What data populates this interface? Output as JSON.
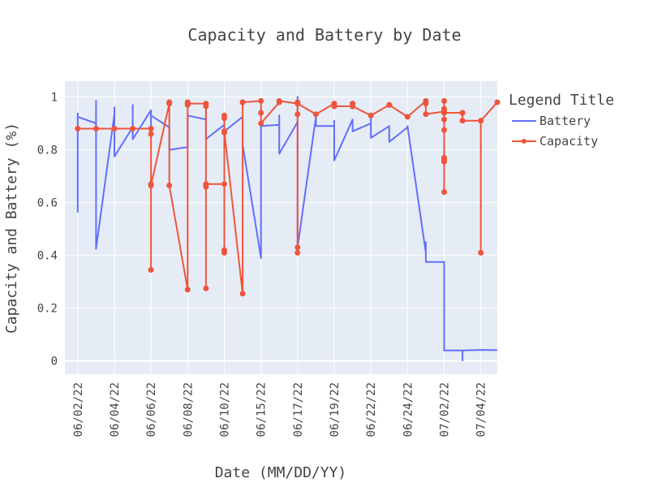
{
  "chart_data": {
    "type": "line",
    "title": "Capacity and Battery by Date",
    "xlabel": "Date (MM/DD/YY)",
    "ylabel": "Capacity and Battery (%)",
    "ylim": [
      -0.05,
      1.06
    ],
    "yticks": [
      0,
      0.2,
      0.4,
      0.6,
      0.8,
      1
    ],
    "ytick_labels": [
      "0",
      "0.2",
      "0.4",
      "0.6",
      "0.8",
      "1"
    ],
    "x_categories": [
      "06/02/22",
      "06/04/22",
      "06/06/22",
      "06/08/22",
      "06/10/22",
      "06/15/22",
      "06/17/22",
      "06/19/22",
      "06/22/22",
      "06/24/22",
      "07/02/22",
      "07/04/22"
    ],
    "xlim": [
      -0.35,
      11.45
    ],
    "legend": {
      "title": "Legend Title",
      "position": "right"
    },
    "series": [
      {
        "name": "Battery",
        "color": "#636efa",
        "mode": "lines",
        "x": [
          0,
          0,
          0,
          0.5,
          0.5,
          0.5,
          1,
          1,
          1,
          1.5,
          1.5,
          1.5,
          2,
          2,
          2,
          2.5,
          2.5,
          3,
          3,
          3.5,
          3.5,
          3.5,
          4,
          4,
          4,
          4.5,
          4.5,
          5,
          5,
          5.5,
          5.5,
          5.5,
          6,
          6,
          6,
          6.5,
          6.5,
          7,
          7,
          7,
          7.5,
          7.5,
          8,
          8,
          8,
          8.5,
          8.5,
          9,
          9,
          9.5,
          9.5,
          9.5,
          10,
          10,
          10,
          10.5,
          10.5,
          10.5,
          11,
          11.45
        ],
        "y": [
          0.94,
          0.565,
          0.925,
          0.9,
          0.985,
          0.425,
          0.935,
          0.96,
          0.775,
          0.885,
          0.97,
          0.84,
          0.95,
          0.85,
          0.93,
          0.885,
          0.8,
          0.81,
          0.93,
          0.915,
          0.96,
          0.84,
          0.895,
          0.93,
          0.87,
          0.925,
          0.82,
          0.39,
          0.89,
          0.895,
          0.93,
          0.785,
          0.905,
          1.0,
          0.43,
          0.925,
          0.89,
          0.89,
          0.91,
          0.76,
          0.915,
          0.87,
          0.9,
          0.92,
          0.845,
          0.89,
          0.83,
          0.885,
          0.89,
          0.41,
          0.45,
          0.375,
          0.375,
          0.04,
          0.04,
          0.04,
          0.002,
          0.04,
          0.042,
          0.041
        ]
      },
      {
        "name": "Capacity",
        "color": "#ef553b",
        "mode": "lines+markers",
        "x": [
          0,
          0.5,
          1,
          1.5,
          2,
          2,
          2,
          2,
          2,
          2.5,
          2.5,
          2.5,
          3,
          3,
          3,
          3,
          3.5,
          3.5,
          3.5,
          3.5,
          3.5,
          4,
          4,
          4,
          4,
          4,
          4,
          4,
          4,
          4,
          4.5,
          4.5,
          4.5,
          5,
          5,
          5,
          5.5,
          5.5,
          6,
          6,
          6,
          6,
          6,
          6,
          6.5,
          7,
          7,
          7,
          7.5,
          7.5,
          7.5,
          8,
          8,
          8.5,
          8.5,
          9,
          9.5,
          9.5,
          9.5,
          10,
          10,
          10,
          10,
          10,
          10,
          10,
          10,
          10,
          10,
          10,
          10,
          10,
          10.5,
          10.5,
          10.5,
          11,
          11,
          11,
          11.45
        ],
        "y": [
          0.88,
          0.88,
          0.88,
          0.88,
          0.88,
          0.86,
          0.345,
          0.67,
          0.665,
          0.975,
          0.98,
          0.665,
          0.27,
          0.98,
          0.97,
          0.975,
          0.975,
          0.965,
          0.275,
          0.66,
          0.67,
          0.67,
          0.865,
          0.87,
          0.42,
          0.41,
          0.87,
          0.92,
          0.93,
          0.87,
          0.255,
          0.98,
          0.98,
          0.985,
          0.94,
          0.9,
          0.98,
          0.985,
          0.975,
          0.98,
          0.43,
          0.41,
          0.935,
          0.975,
          0.935,
          0.975,
          0.965,
          0.965,
          0.965,
          0.975,
          0.965,
          0.93,
          0.93,
          0.97,
          0.97,
          0.925,
          0.985,
          0.975,
          0.935,
          0.945,
          0.985,
          0.955,
          0.94,
          0.915,
          0.875,
          0.64,
          0.755,
          0.765,
          0.77,
          0.76,
          0.945,
          0.94,
          0.94,
          0.94,
          0.91,
          0.91,
          0.41,
          0.91,
          0.98
        ]
      }
    ]
  }
}
